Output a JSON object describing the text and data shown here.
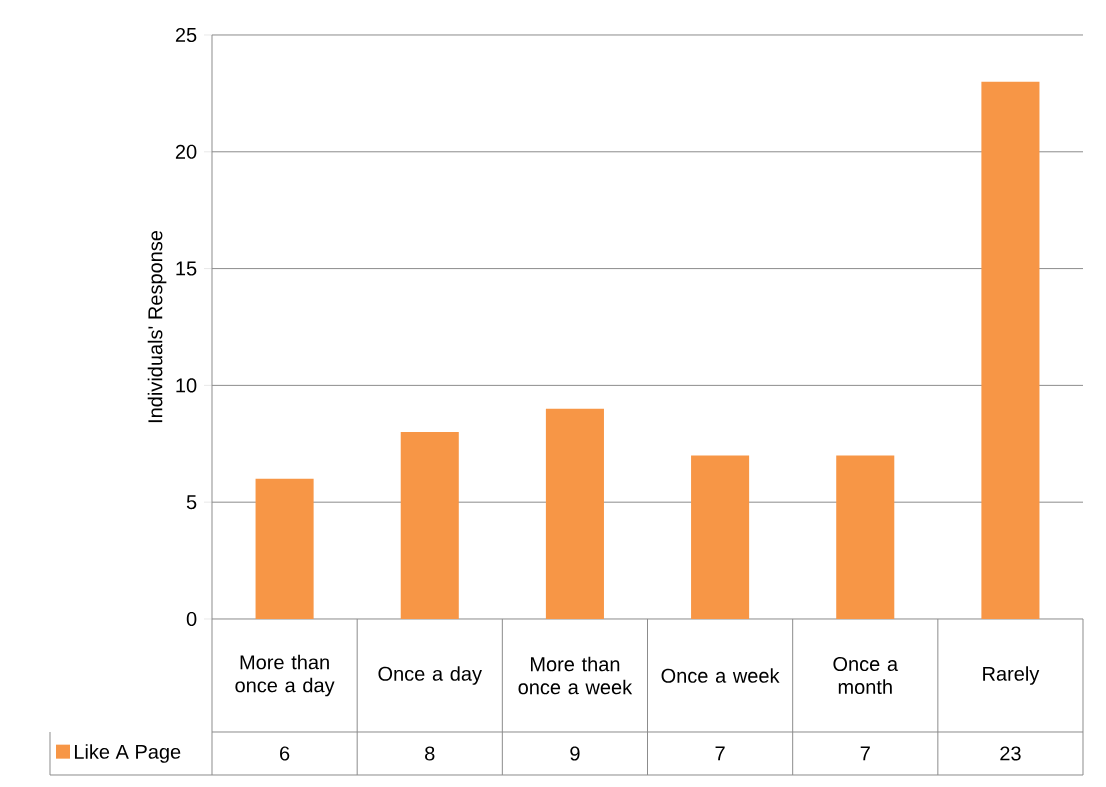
{
  "chart_data": {
    "type": "bar",
    "ylabel": "Individuals' Response",
    "categories": [
      "More than once a day",
      "Once a day",
      "More than once a week",
      "Once a week",
      "Once a month",
      "Rarely"
    ],
    "series": [
      {
        "name": "Like A Page",
        "color": "#f79646",
        "values": [
          6,
          8,
          9,
          7,
          7,
          23
        ]
      }
    ],
    "ylim": [
      0,
      25
    ],
    "yticks": [
      0,
      5,
      10,
      15,
      20,
      25
    ],
    "grid": "y",
    "legend": "bottom left",
    "data_labels": true
  }
}
